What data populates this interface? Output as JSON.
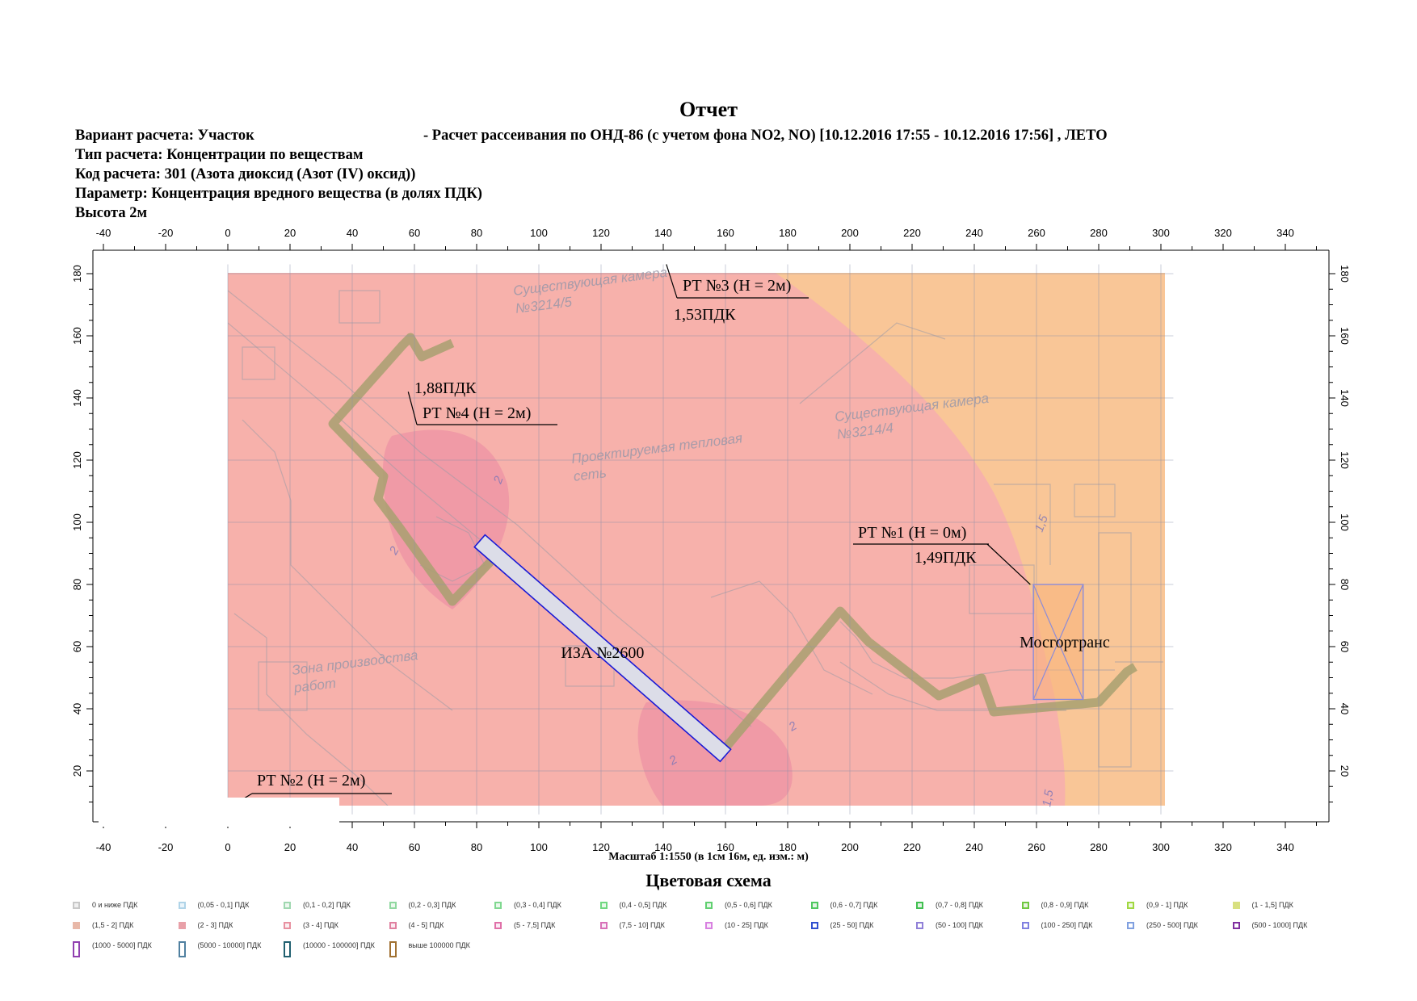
{
  "report": {
    "title": "Отчет",
    "variant_label": "Вариант расчета: Участок",
    "variant_detail": "- Расчет рассеивания по ОНД-86 (с учетом фона NO2, NO) [10.12.2016 17:55 - 10.12.2016 17:56] , ЛЕТО",
    "calc_type": "Тип расчета: Концентрации по веществам",
    "calc_code": "Код расчета: 301 (Азота диоксид (Азот (IV) оксид))",
    "parameter": "Параметр: Концентрация вредного вещества (в долях ПДК)",
    "height": "Высота 2м"
  },
  "chart_data": {
    "type": "contour-map",
    "x_range": [
      -40,
      350
    ],
    "y_range": [
      5,
      185
    ],
    "x_ticks": [
      -40,
      -20,
      0,
      20,
      40,
      60,
      80,
      100,
      120,
      140,
      160,
      180,
      200,
      220,
      240,
      260,
      280,
      300,
      320,
      340
    ],
    "y_ticks": [
      20,
      40,
      60,
      80,
      100,
      120,
      140,
      160,
      180
    ],
    "grid": true,
    "scale_caption": "Масштаб 1:1550 (в 1см 16м, ед. изм.: м)",
    "contour_colors": {
      "zone_1_1_5": "#f9c697",
      "zone_1_5_2": "#f7b1ab",
      "zone_2_3": "#f09aa6"
    },
    "contour_labels": [
      "2",
      "2",
      "2",
      "2",
      "1,5",
      "1,5"
    ],
    "basemap_labels": [
      "Существующая камера №3214/5",
      "Существующая камера №3214/4",
      "Проектируемая тепловая сеть",
      "Зона производства работ"
    ],
    "points": [
      {
        "id": "rt1",
        "name": "РТ №1 (Н = 0м)",
        "value": "1,49ПДК",
        "x": 258,
        "y": 80
      },
      {
        "id": "rt2",
        "name": "РТ №2 (Н = 2м)",
        "value": "",
        "x": 0,
        "y": 8
      },
      {
        "id": "rt3",
        "name": "РТ №3 (Н = 2м)",
        "value": "1,53ПДК",
        "x": 141,
        "y": 183
      },
      {
        "id": "rt4",
        "name": "РТ №4 (Н = 2м)",
        "value": "1,88ПДК",
        "x": 58,
        "y": 142
      }
    ],
    "sources": [
      {
        "name": "ИЗА №2600",
        "x1": 81,
        "y1": 94,
        "x2": 160,
        "y2": 25
      }
    ],
    "areas": [
      {
        "name": "Мосгортранс",
        "x1": 259,
        "y1": 80,
        "x2": 275,
        "y2": 43
      }
    ]
  },
  "legend": {
    "title": "Цветовая схема",
    "items": [
      {
        "label": "0 и ниже ПДК",
        "color": "#c8c8c8",
        "fill": "#f0f0f0"
      },
      {
        "label": "(0,05 - 0,1] ПДК",
        "color": "#b0d4e8",
        "fill": "#eaf4fa"
      },
      {
        "label": "(0,1 - 0,2] ПДК",
        "color": "#a0d8b0",
        "fill": "#eef8f0"
      },
      {
        "label": "(0,2 - 0,3] ПДК",
        "color": "#90d8a0",
        "fill": "#ecf8ee"
      },
      {
        "label": "(0,3 - 0,4] ПДК",
        "color": "#80d890",
        "fill": "#eaf8ec"
      },
      {
        "label": "(0,4 - 0,5] ПДК",
        "color": "#70d880",
        "fill": "#e8f8ea"
      },
      {
        "label": "(0,5 - 0,6] ПДК",
        "color": "#60d070",
        "fill": "#e6f6e8"
      },
      {
        "label": "(0,6 - 0,7] ПДК",
        "color": "#50c860",
        "fill": "#e4f4e6"
      },
      {
        "label": "(0,7 - 0,8] ПДК",
        "color": "#40c050",
        "fill": "#e2f2e4"
      },
      {
        "label": "(0,8 - 0,9] ПДК",
        "color": "#70c840",
        "fill": "#eaf4e2"
      },
      {
        "label": "(0,9 - 1] ПДК",
        "color": "#a0d840",
        "fill": "#f0f8e2"
      },
      {
        "label": "(1 - 1,5] ПДК",
        "color": "#d8e080",
        "fill": "#d8e080"
      },
      {
        "label": "(1,5 - 2] ПДК",
        "color": "#e8b8a8",
        "fill": "#e8b8a8"
      },
      {
        "label": "(2 - 3] ПДК",
        "color": "#e8a0a8",
        "fill": "#e8a0a8"
      },
      {
        "label": "(3 - 4] ПДК",
        "color": "#e890a0",
        "fill": "#fbeef0"
      },
      {
        "label": "(4 - 5] ПДК",
        "color": "#e080a0",
        "fill": "#fbecf2"
      },
      {
        "label": "(5 - 7,5] ПДК",
        "color": "#e070a8",
        "fill": "#fbeaf4"
      },
      {
        "label": "(7,5 - 10] ПДК",
        "color": "#d870b8",
        "fill": "#f8eaf6"
      },
      {
        "label": "(10 - 25] ПДК",
        "color": "#d880e0",
        "fill": "#f8ecfa"
      },
      {
        "label": "(25 - 50] ПДК",
        "color": "#3050d0",
        "fill": "#ffffff"
      },
      {
        "label": "(50 - 100] ПДК",
        "color": "#9080d8",
        "fill": "#ffffff"
      },
      {
        "label": "(100 - 250] ПДК",
        "color": "#8080e0",
        "fill": "#ffffff"
      },
      {
        "label": "(250 - 500] ПДК",
        "color": "#80a0e0",
        "fill": "#ffffff"
      },
      {
        "label": "(500 - 1000] ПДК",
        "color": "#8030a0",
        "fill": "#ffffff"
      },
      {
        "label": "(1000 - 5000] ПДК",
        "color": "#9040b0",
        "fill": "#ffffff"
      },
      {
        "label": "(5000 - 10000] ПДК",
        "color": "#5080a0",
        "fill": "#ffffff"
      },
      {
        "label": "(10000 - 100000] ПДК",
        "color": "#206070",
        "fill": "#ffffff"
      },
      {
        "label": "выше 100000 ПДК",
        "color": "#a07030",
        "fill": "#ffffff"
      }
    ]
  }
}
